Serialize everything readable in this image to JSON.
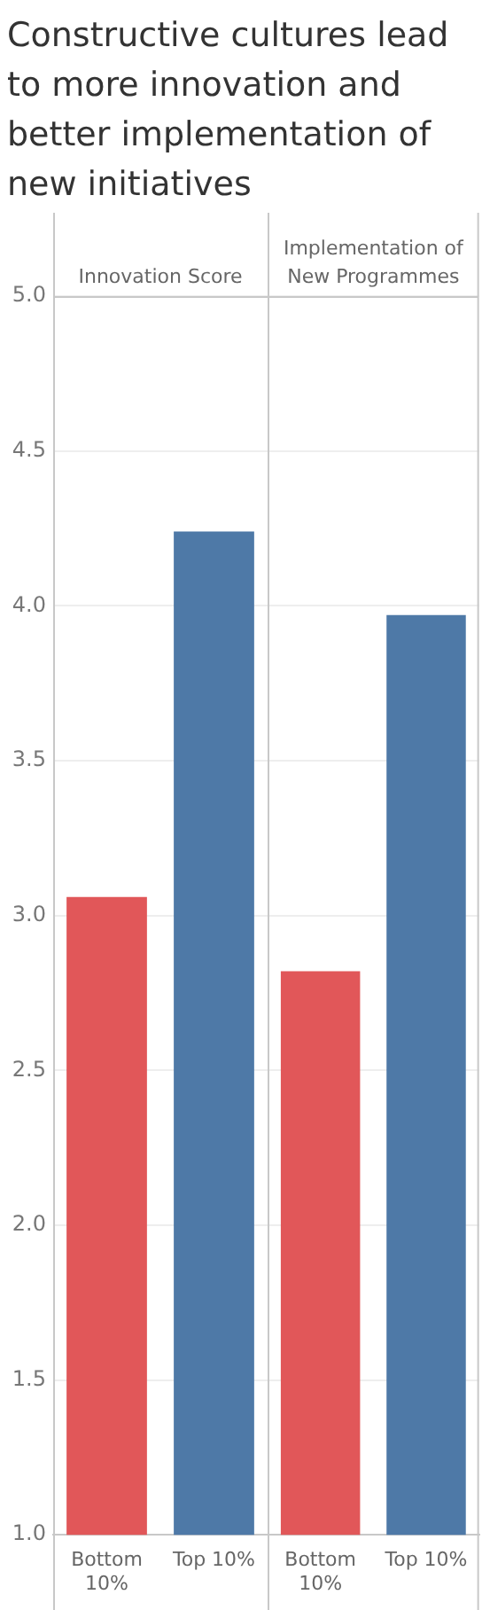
{
  "chart_data": [
    {
      "type": "bar",
      "title": "Constructive cultures lead to more innovation and better implementation of new initiatives",
      "subtitle": "Innovation Score",
      "categories": [
        "Bottom 10%",
        "Top 10%"
      ],
      "values": [
        3.06,
        4.24
      ],
      "colors": [
        "#e15759",
        "#4e79a7"
      ],
      "ylim": [
        1,
        5
      ],
      "yticks": [
        {
          "value": 1,
          "label": "1.0"
        },
        {
          "value": 1.5,
          "label": "1.5"
        },
        {
          "value": 2,
          "label": "2.0"
        },
        {
          "value": 2.5,
          "label": "2.5"
        },
        {
          "value": 3,
          "label": "3.0"
        },
        {
          "value": 3.5,
          "label": "3.5"
        },
        {
          "value": 4,
          "label": "4.0"
        },
        {
          "value": 4.5,
          "label": "4.5"
        },
        {
          "value": 5,
          "label": "5.0"
        }
      ],
      "grid": "y",
      "legend": false
    },
    {
      "type": "bar",
      "subtitle": "Implementation of New Programmes",
      "categories": [
        "Bottom 10%",
        "Top 10%"
      ],
      "values": [
        2.82,
        3.97
      ],
      "colors": [
        "#e15759",
        "#4e79a7"
      ],
      "ylim": [
        1,
        5
      ],
      "yticks": [
        1,
        1.5,
        2,
        2.5,
        3,
        3.5,
        4,
        4.5,
        5
      ],
      "grid": "y",
      "legend": false,
      "tick_labels": "x"
    }
  ]
}
